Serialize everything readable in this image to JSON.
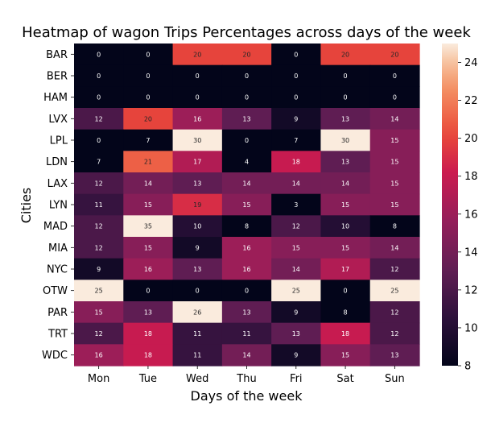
{
  "chart_data": {
    "type": "heatmap",
    "title": "Heatmap of wagon Trips Percentages across days of the week",
    "xlabel": "Days of the week",
    "ylabel": "Cities",
    "columns": [
      "Mon",
      "Tue",
      "Wed",
      "Thu",
      "Fri",
      "Sat",
      "Sun"
    ],
    "rows": [
      "BAR",
      "BER",
      "HAM",
      "LVX",
      "LPL",
      "LDN",
      "LAX",
      "LYN",
      "MAD",
      "MIA",
      "NYC",
      "OTW",
      "PAR",
      "TRT",
      "WDC"
    ],
    "values": [
      [
        0,
        0,
        20,
        20,
        0,
        20,
        20
      ],
      [
        0,
        0,
        0,
        0,
        0,
        0,
        0
      ],
      [
        0,
        0,
        0,
        0,
        0,
        0,
        0
      ],
      [
        12,
        20,
        16,
        13,
        9,
        13,
        14
      ],
      [
        0,
        7,
        30,
        0,
        7,
        30,
        15
      ],
      [
        7,
        21,
        17,
        4,
        18,
        13,
        15
      ],
      [
        12,
        14,
        13,
        14,
        14,
        14,
        15
      ],
      [
        11,
        15,
        19,
        15,
        3,
        15,
        15
      ],
      [
        12,
        35,
        10,
        8,
        12,
        10,
        8
      ],
      [
        12,
        15,
        9,
        16,
        15,
        15,
        14
      ],
      [
        9,
        16,
        13,
        16,
        14,
        17,
        12
      ],
      [
        25,
        0,
        0,
        0,
        25,
        0,
        25
      ],
      [
        15,
        13,
        26,
        13,
        9,
        8,
        12
      ],
      [
        12,
        18,
        11,
        11,
        13,
        18,
        12
      ],
      [
        16,
        18,
        11,
        14,
        9,
        15,
        13
      ]
    ],
    "colorbar": {
      "range": [
        8,
        25
      ],
      "ticks": [
        8,
        10,
        12,
        14,
        16,
        18,
        20,
        22,
        24
      ],
      "colormap": "rocket"
    },
    "grid": false,
    "legend": "colorbar-right"
  }
}
